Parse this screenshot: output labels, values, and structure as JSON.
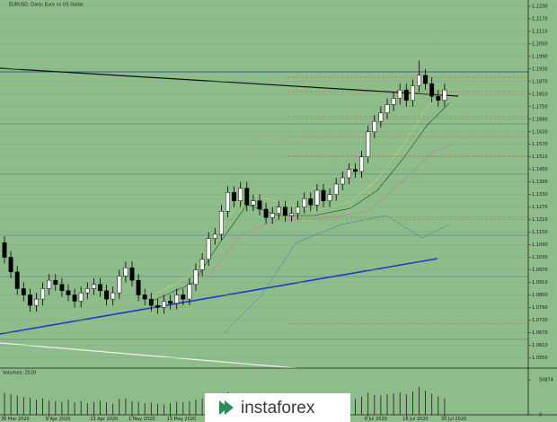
{
  "chart_data": {
    "type": "candlestick",
    "title": "EURUSD, Daily:  Euro vs US Dollar",
    "volume_label": "Volumes: 2520",
    "logo": "instaforex",
    "categories": [
      "30 Mar 2020",
      null,
      null,
      null,
      null,
      null,
      null,
      "9 Apr 2020",
      null,
      null,
      null,
      null,
      null,
      null,
      "21 Apr 2020",
      null,
      null,
      null,
      null,
      null,
      "1 May 2020",
      null,
      null,
      null,
      null,
      null,
      "13 May 2020",
      null,
      null,
      null,
      null,
      null,
      null,
      null,
      null,
      null,
      null,
      null,
      null,
      null,
      null,
      null,
      null,
      null,
      null,
      null,
      null,
      null,
      null,
      null,
      null,
      null,
      null,
      null,
      null,
      null,
      null,
      "6 Jul 2020",
      null,
      null,
      null,
      null,
      null,
      "16 Jul 2020",
      null,
      null,
      null,
      null,
      null,
      "30 Jul 2020"
    ],
    "open": [
      1.11,
      1.103,
      1.096,
      1.088,
      1.085,
      1.08,
      1.083,
      1.088,
      1.092,
      1.09,
      1.087,
      1.085,
      1.082,
      1.086,
      1.088,
      1.09,
      1.087,
      1.083,
      1.086,
      1.094,
      1.098,
      1.092,
      1.085,
      1.083,
      1.08,
      1.079,
      1.082,
      1.081,
      1.085,
      1.083,
      1.09,
      1.097,
      1.102,
      1.112,
      1.114,
      1.125,
      1.134,
      1.13,
      1.136,
      1.128,
      1.13,
      1.126,
      1.122,
      1.124,
      1.127,
      1.123,
      1.124,
      1.127,
      1.131,
      1.128,
      1.135,
      1.13,
      1.133,
      1.138,
      1.141,
      1.145,
      1.144,
      1.151,
      1.163,
      1.168,
      1.172,
      1.176,
      1.179,
      1.183,
      1.178,
      1.185,
      1.19,
      1.186,
      1.18,
      1.178
    ],
    "high": [
      1.113,
      1.106,
      1.099,
      1.091,
      1.088,
      1.086,
      1.091,
      1.095,
      1.095,
      1.093,
      1.09,
      1.088,
      1.089,
      1.091,
      1.093,
      1.093,
      1.09,
      1.089,
      1.097,
      1.101,
      1.101,
      1.095,
      1.088,
      1.086,
      1.083,
      1.085,
      1.085,
      1.088,
      1.088,
      1.093,
      1.1,
      1.105,
      1.115,
      1.117,
      1.128,
      1.137,
      1.137,
      1.139,
      1.139,
      1.133,
      1.133,
      1.129,
      1.127,
      1.13,
      1.13,
      1.127,
      1.13,
      1.134,
      1.134,
      1.138,
      1.138,
      1.136,
      1.141,
      1.144,
      1.148,
      1.148,
      1.154,
      1.166,
      1.171,
      1.175,
      1.179,
      1.182,
      1.186,
      1.186,
      1.188,
      1.197,
      1.193,
      1.189,
      1.183,
      1.186
    ],
    "low": [
      1.1,
      1.093,
      1.085,
      1.082,
      1.077,
      1.077,
      1.08,
      1.085,
      1.087,
      1.084,
      1.082,
      1.079,
      1.079,
      1.083,
      1.085,
      1.084,
      1.08,
      1.08,
      1.083,
      1.091,
      1.089,
      1.082,
      1.08,
      1.077,
      1.076,
      1.076,
      1.078,
      1.078,
      1.08,
      1.08,
      1.087,
      1.094,
      1.099,
      1.109,
      1.111,
      1.122,
      1.127,
      1.127,
      1.125,
      1.125,
      1.123,
      1.119,
      1.119,
      1.121,
      1.12,
      1.12,
      1.121,
      1.124,
      1.125,
      1.125,
      1.127,
      1.127,
      1.13,
      1.135,
      1.138,
      1.141,
      1.141,
      1.148,
      1.16,
      1.165,
      1.169,
      1.173,
      1.176,
      1.175,
      1.175,
      1.182,
      1.183,
      1.177,
      1.175,
      1.175
    ],
    "close": [
      1.103,
      1.096,
      1.088,
      1.085,
      1.08,
      1.083,
      1.088,
      1.092,
      1.09,
      1.087,
      1.085,
      1.082,
      1.086,
      1.088,
      1.09,
      1.087,
      1.083,
      1.086,
      1.094,
      1.098,
      1.092,
      1.085,
      1.083,
      1.08,
      1.079,
      1.082,
      1.081,
      1.085,
      1.083,
      1.09,
      1.097,
      1.102,
      1.112,
      1.114,
      1.125,
      1.134,
      1.13,
      1.136,
      1.128,
      1.13,
      1.126,
      1.122,
      1.124,
      1.127,
      1.123,
      1.124,
      1.127,
      1.131,
      1.128,
      1.135,
      1.13,
      1.133,
      1.138,
      1.141,
      1.145,
      1.144,
      1.151,
      1.163,
      1.168,
      1.172,
      1.176,
      1.179,
      1.183,
      1.178,
      1.185,
      1.19,
      1.186,
      1.18,
      1.178,
      1.183
    ],
    "volumes": [
      32000,
      30000,
      28000,
      26000,
      25000,
      22000,
      24000,
      21000,
      20000,
      19000,
      22000,
      18000,
      20000,
      17000,
      19000,
      21000,
      18000,
      16000,
      23000,
      24000,
      20000,
      19000,
      17000,
      18000,
      16000,
      15000,
      17000,
      19000,
      18000,
      20000,
      22000,
      24000,
      30000,
      26000,
      31000,
      33000,
      25000,
      27000,
      24000,
      22000,
      21000,
      20000,
      19000,
      18000,
      20000,
      17000,
      18000,
      19000,
      17000,
      21000,
      18000,
      19000,
      22000,
      24000,
      25000,
      23000,
      27000,
      32000,
      29000,
      28000,
      30000,
      31000,
      33000,
      30000,
      34000,
      41000,
      35000,
      31000,
      27000,
      24000
    ],
    "ylim": [
      1.05,
      1.226
    ],
    "yticks": [
      {
        "value": 1.223,
        "label": "1.2230"
      },
      {
        "value": 1.217,
        "label": "1.2170"
      },
      {
        "value": 1.211,
        "label": "1.2110"
      },
      {
        "value": 1.205,
        "label": "1.2050"
      },
      {
        "value": 1.199,
        "label": "1.1990"
      },
      {
        "value": 1.193,
        "label": "1.1930"
      },
      {
        "value": 1.187,
        "label": "1.1870"
      },
      {
        "value": 1.181,
        "label": "1.1810"
      },
      {
        "value": 1.175,
        "label": "1.1750"
      },
      {
        "value": 1.169,
        "label": "1.1690"
      },
      {
        "value": 1.163,
        "label": "1.1630"
      },
      {
        "value": 1.157,
        "label": "1.1570"
      },
      {
        "value": 1.151,
        "label": "1.1510"
      },
      {
        "value": 1.145,
        "label": "1.1450"
      },
      {
        "value": 1.139,
        "label": "1.1390"
      },
      {
        "value": 1.133,
        "label": "1.1330"
      },
      {
        "value": 1.127,
        "label": "1.1270"
      },
      {
        "value": 1.121,
        "label": "1.1210"
      },
      {
        "value": 1.115,
        "label": "1.1150"
      },
      {
        "value": 1.109,
        "label": "1.1090"
      },
      {
        "value": 1.103,
        "label": "1.1030"
      },
      {
        "value": 1.097,
        "label": "1.0970"
      },
      {
        "value": 1.091,
        "label": "1.0910"
      },
      {
        "value": 1.085,
        "label": "1.0850"
      },
      {
        "value": 1.079,
        "label": "1.0790"
      },
      {
        "value": 1.073,
        "label": "1.0730"
      },
      {
        "value": 1.067,
        "label": "1.0670"
      },
      {
        "value": 1.061,
        "label": "1.0610"
      },
      {
        "value": 1.055,
        "label": "1.0550"
      }
    ],
    "y2lim": [
      0,
      55000
    ],
    "y2ticks": [
      50874,
      0
    ],
    "grid": true,
    "up_color": "#ffffff",
    "down_color": "#000000"
  }
}
